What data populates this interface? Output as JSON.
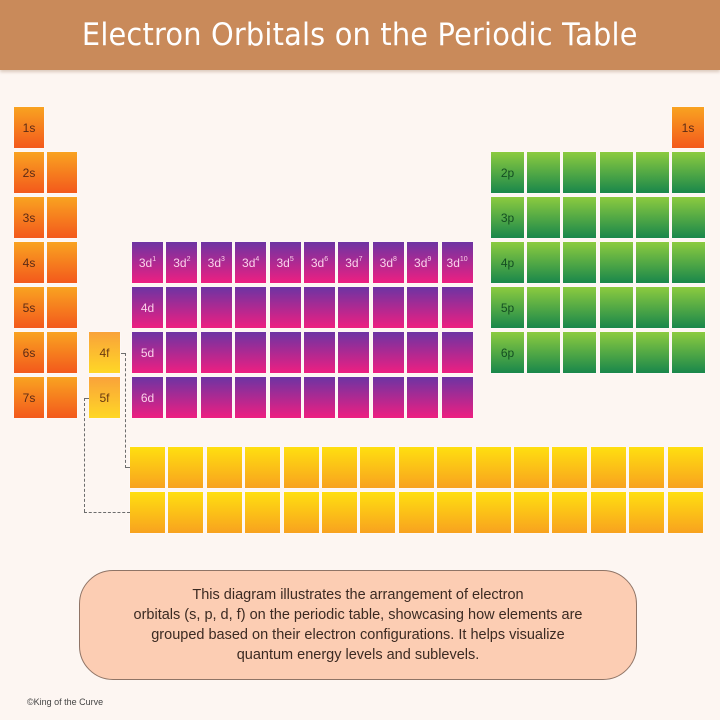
{
  "header": {
    "title": "Electron Orbitals on the Periodic Table"
  },
  "colors": {
    "title_bar": "#c98a5a",
    "background": "#fdf6f2",
    "s_block": [
      "#f9a321",
      "#f3591c"
    ],
    "p_block": [
      "#8ccb3f",
      "#19874b"
    ],
    "d_block": [
      "#6d34a3",
      "#ee1f81"
    ],
    "f_block": [
      "#ffdf10",
      "#f8a21f"
    ],
    "callout_fill": "#fccdb3"
  },
  "s_block": {
    "rows": [
      {
        "label": "1s",
        "columns": 1
      },
      {
        "label": "2s",
        "columns": 2
      },
      {
        "label": "3s",
        "columns": 2
      },
      {
        "label": "4s",
        "columns": 2
      },
      {
        "label": "5s",
        "columns": 2
      },
      {
        "label": "6s",
        "columns": 2
      },
      {
        "label": "7s",
        "columns": 2
      }
    ],
    "helium_label": "1s"
  },
  "d_block": {
    "first_row_labels": [
      {
        "base": "3d",
        "sup": "1"
      },
      {
        "base": "3d",
        "sup": "2"
      },
      {
        "base": "3d",
        "sup": "3"
      },
      {
        "base": "3d",
        "sup": "4"
      },
      {
        "base": "3d",
        "sup": "5"
      },
      {
        "base": "3d",
        "sup": "6"
      },
      {
        "base": "3d",
        "sup": "7"
      },
      {
        "base": "3d",
        "sup": "8"
      },
      {
        "base": "3d",
        "sup": "9"
      },
      {
        "base": "3d",
        "sup": "10"
      }
    ],
    "row_labels": [
      "3d",
      "4d",
      "5d",
      "6d"
    ],
    "columns": 10
  },
  "p_block": {
    "row_labels": [
      "2p",
      "3p",
      "4p",
      "5p",
      "6p"
    ],
    "columns": 6
  },
  "f_block": {
    "inline_labels": [
      "4f",
      "5f"
    ],
    "rows": 2,
    "columns": 15
  },
  "callout": {
    "text": "This diagram illustrates the arrangement of electron orbitals (s, p, d, f) on the periodic table, showcasing how elements are grouped based on their electron configurations. It helps visualize quantum energy levels and sublevels.",
    "lines": [
      "This diagram illustrates the arrangement of electron",
      "orbitals (s, p, d, f) on the periodic table, showcasing how elements are",
      "grouped based on their electron configurations. It helps visualize",
      "quantum energy levels and sublevels."
    ]
  },
  "footer": {
    "credit": "©King of the Curve"
  }
}
